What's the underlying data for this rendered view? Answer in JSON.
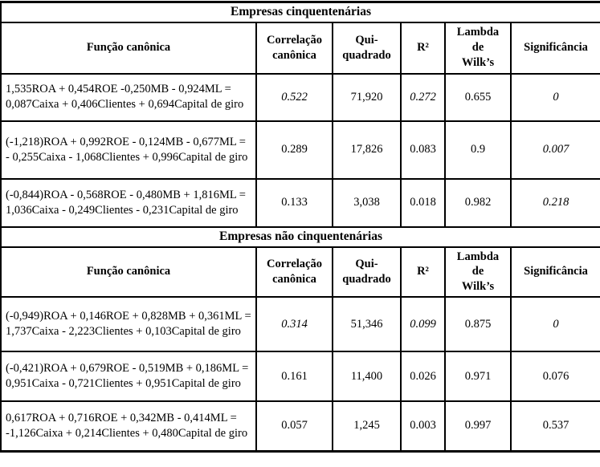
{
  "tables": [
    {
      "title": "Empresas cinquentenárias",
      "columns": [
        "Função canônica",
        "Correlação canônica",
        "Qui-quadrado",
        "R²",
        "Lambda de Wilk’s",
        "Significância"
      ],
      "rows": [
        {
          "funcao": "1,535ROA + 0,454ROE -0,250MB - 0,924ML = 0,087Caixa + 0,406Clientes + 0,694Capital de giro",
          "correlacao": "0.522",
          "qui_quadrado": "71,920",
          "r2": "0.272",
          "lambda": "0.655",
          "significancia": "0"
        },
        {
          "funcao": "(-1,218)ROA + 0,992ROE - 0,124MB - 0,677ML = - 0,255Caixa - 1,068Clientes + 0,996Capital de giro",
          "correlacao": "0.289",
          "qui_quadrado": "17,826",
          "r2": "0.083",
          "lambda": "0.9",
          "significancia": "0.007"
        },
        {
          "funcao": "(-0,844)ROA - 0,568ROE - 0,480MB + 1,816ML = 1,036Caixa - 0,249Clientes - 0,231Capital de giro",
          "correlacao": "0.133",
          "qui_quadrado": "3,038",
          "r2": "0.018",
          "lambda": "0.982",
          "significancia": "0.218"
        }
      ]
    },
    {
      "title": "Empresas não cinquentenárias",
      "columns": [
        "Função canônica",
        "Correlação canônica",
        "Qui-quadrado",
        "R²",
        "Lambda de Wilk’s",
        "Significância"
      ],
      "rows": [
        {
          "funcao": "(-0,949)ROA + 0,146ROE + 0,828MB + 0,361ML = 1,737Caixa - 2,223Clientes + 0,103Capital de giro",
          "correlacao": "0.314",
          "qui_quadrado": "51,346",
          "r2": "0.099",
          "lambda": "0.875",
          "significancia": "0"
        },
        {
          "funcao": "(-0,421)ROA + 0,679ROE - 0,519MB + 0,186ML = 0,951Caixa - 0,721Clientes + 0,951Capital de giro",
          "correlacao": "0.161",
          "qui_quadrado": "11,400",
          "r2": "0.026",
          "lambda": "0.971",
          "significancia": "0.076"
        },
        {
          "funcao": "0,617ROA + 0,716ROE + 0,342MB - 0,414ML = -1,126Caixa + 0,214Clientes + 0,480Capital de giro",
          "correlacao": "0.057",
          "qui_quadrado": "1,245",
          "r2": "0.003",
          "lambda": "0.997",
          "significancia": "0.537"
        }
      ]
    }
  ]
}
